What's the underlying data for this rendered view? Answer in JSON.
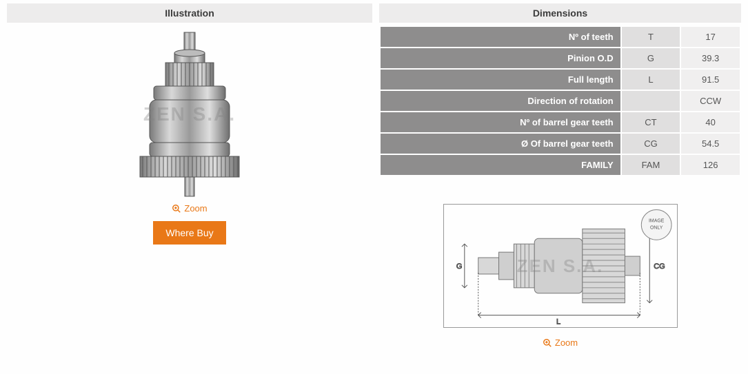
{
  "headers": {
    "illustration": "Illustration",
    "dimensions": "Dimensions"
  },
  "watermark_text": "ZEN S.A.",
  "zoom_label": "Zoom",
  "where_buy_label": "Where Buy",
  "dim_rows": [
    {
      "label": "Nº of teeth",
      "code": "T",
      "value": "17"
    },
    {
      "label": "Pinion O.D",
      "code": "G",
      "value": "39.3"
    },
    {
      "label": "Full length",
      "code": "L",
      "value": "91.5"
    },
    {
      "label": "Direction of rotation",
      "code": "",
      "value": "CCW"
    },
    {
      "label": "Nº of barrel gear teeth",
      "code": "CT",
      "value": "40"
    },
    {
      "label": "Ø Of barrel gear teeth",
      "code": "CG",
      "value": "54.5"
    },
    {
      "label": "FAMILY",
      "code": "FAM",
      "value": "126"
    }
  ],
  "diagram_labels": {
    "G": "G",
    "L": "L",
    "CG": "CG"
  },
  "badge_text": "IMAGE\nONLY",
  "colors": {
    "accent": "#e97817",
    "header_bg": "#edecec",
    "label_bg": "#8e8d8d",
    "code_bg": "#e0dfdf",
    "val_bg": "#f0efef"
  }
}
